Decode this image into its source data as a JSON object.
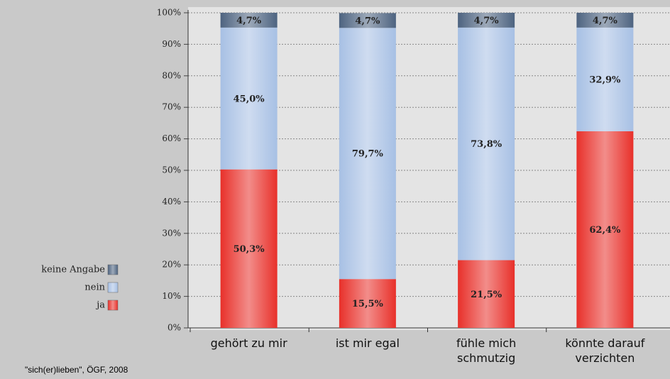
{
  "chart_data": {
    "type": "stacked_bar",
    "categories": [
      "gehört zu mir",
      "ist mir egal",
      "fühle mich\nschmutzig",
      "könnte darauf\nverzichten"
    ],
    "series": [
      {
        "name": "ja",
        "color": "#e8302a",
        "values": [
          50.3,
          15.5,
          21.5,
          62.4
        ],
        "value_labels": [
          "50,3%",
          "15,5%",
          "21,5%",
          "62,4%"
        ]
      },
      {
        "name": "nein",
        "color": "#a7c0e4",
        "values": [
          45.0,
          79.7,
          73.8,
          32.9
        ],
        "value_labels": [
          "45,0%",
          "79,7%",
          "73,8%",
          "32,9%"
        ]
      },
      {
        "name": "keine Angabe",
        "color": "#4d6380",
        "values": [
          4.7,
          4.7,
          4.7,
          4.7
        ],
        "value_labels": [
          "4,7%",
          "4,7%",
          "4,7%",
          "4,7%"
        ]
      }
    ],
    "ylim": [
      0,
      100
    ],
    "yticks": [
      {
        "value": 0,
        "label": "0%"
      },
      {
        "value": 10,
        "label": "10%"
      },
      {
        "value": 20,
        "label": "20%"
      },
      {
        "value": 30,
        "label": "30%"
      },
      {
        "value": 40,
        "label": "40%"
      },
      {
        "value": 50,
        "label": "50%"
      },
      {
        "value": 60,
        "label": "60%"
      },
      {
        "value": 70,
        "label": "70%"
      },
      {
        "value": 80,
        "label": "80%"
      },
      {
        "value": 90,
        "label": "90%"
      },
      {
        "value": 100,
        "label": "100%"
      }
    ],
    "grid": true,
    "legend": "left",
    "source": "\"sich(er)lieben\", ÖGF, 2008"
  }
}
